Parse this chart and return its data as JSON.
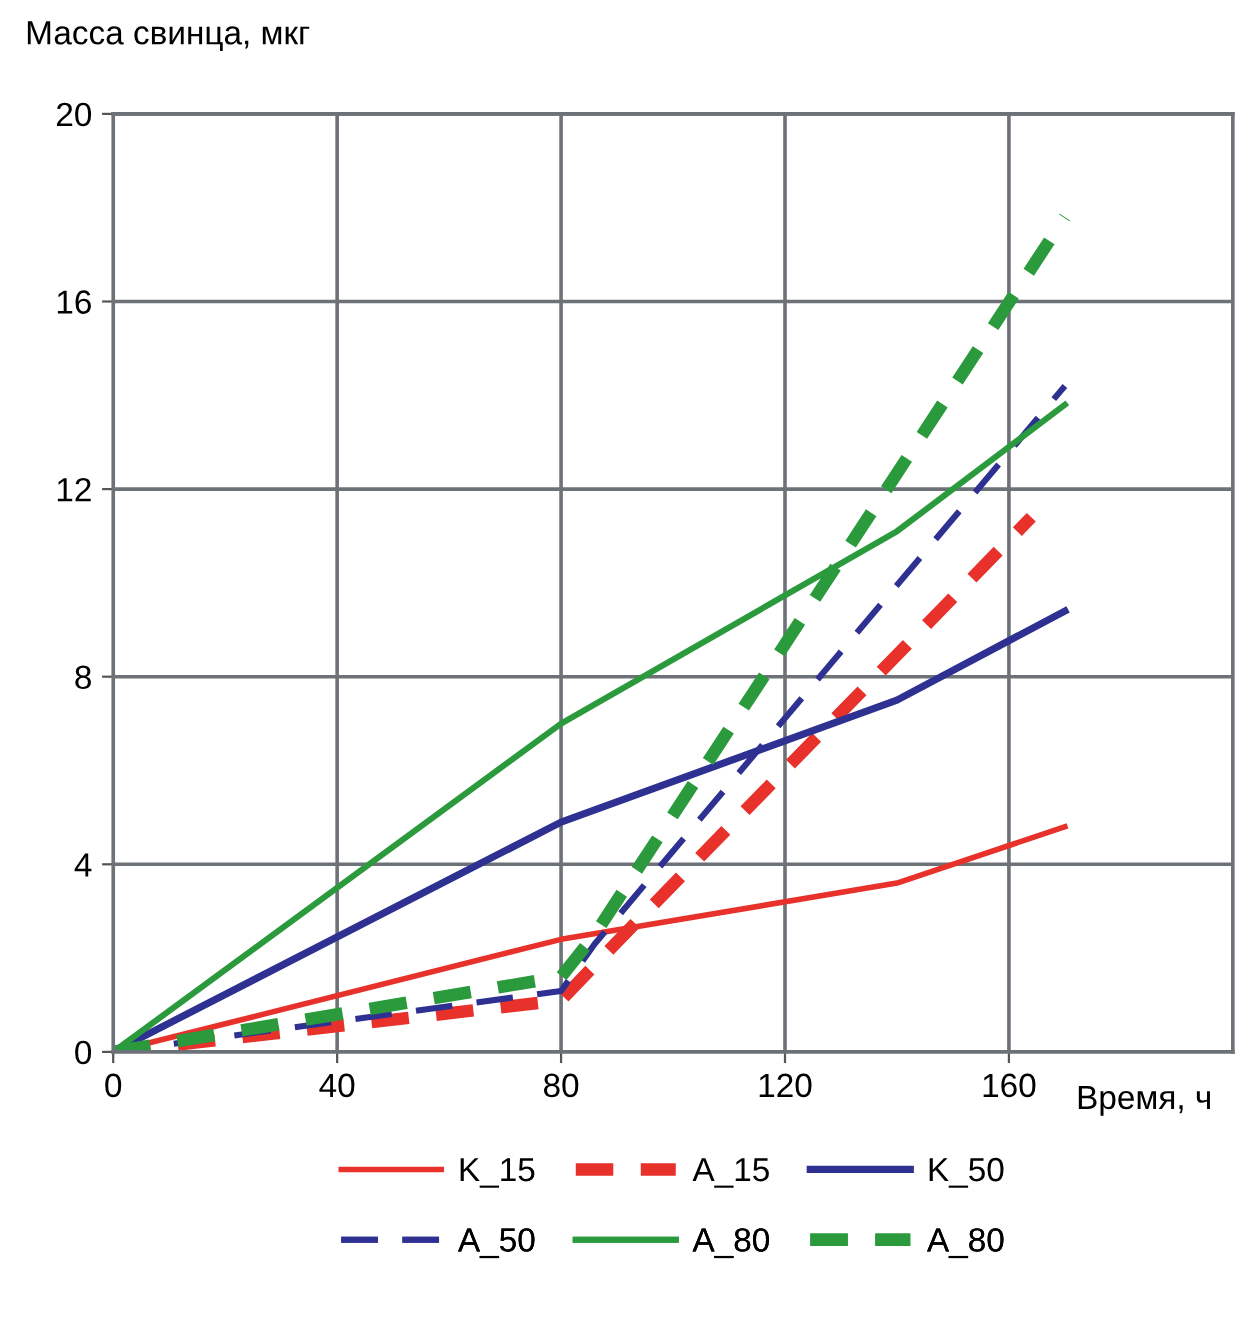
{
  "chart_data": {
    "type": "line",
    "ylabel": "Масса свинца, мкг",
    "xlabel": "Время, ч",
    "xlim": [
      0,
      200
    ],
    "xticks": [
      0,
      40,
      80,
      120,
      160
    ],
    "ylim": [
      0,
      20
    ],
    "yticks": [
      0,
      4,
      8,
      12,
      16,
      20
    ],
    "grid": true,
    "legend": "bottom",
    "marker": "none",
    "series": [
      {
        "name": "K_15",
        "color": "#e8312a",
        "line_style": "solid",
        "x": [
          0,
          80,
          140,
          170
        ],
        "values": [
          0,
          2.4,
          3.6,
          4.8
        ]
      },
      {
        "name": "A_15",
        "color": "#e8312a",
        "line_style": "dashed",
        "x": [
          0,
          80,
          88,
          164
        ],
        "values": [
          0,
          1.1,
          2.1,
          11.4
        ]
      },
      {
        "name": "K_50",
        "color": "#2e3192",
        "line_style": "solid",
        "x": [
          0,
          80,
          140,
          170
        ],
        "values": [
          0,
          4.9,
          7.5,
          9.4
        ]
      },
      {
        "name": "A_50",
        "color": "#2e3192",
        "line_style": "dashed",
        "x": [
          0,
          80,
          86,
          170
        ],
        "values": [
          0,
          1.3,
          2.3,
          14.2
        ]
      },
      {
        "name": "A_80",
        "color": "#2a9a3c",
        "line_style": "solid",
        "x": [
          0,
          80,
          140,
          170
        ],
        "values": [
          0,
          7.0,
          11.1,
          13.8
        ]
      },
      {
        "name": "A_80",
        "color": "#2a9a3c",
        "line_style": "dashed",
        "x": [
          0,
          80,
          86,
          170
        ],
        "values": [
          0,
          1.6,
          2.5,
          17.8
        ]
      }
    ]
  }
}
